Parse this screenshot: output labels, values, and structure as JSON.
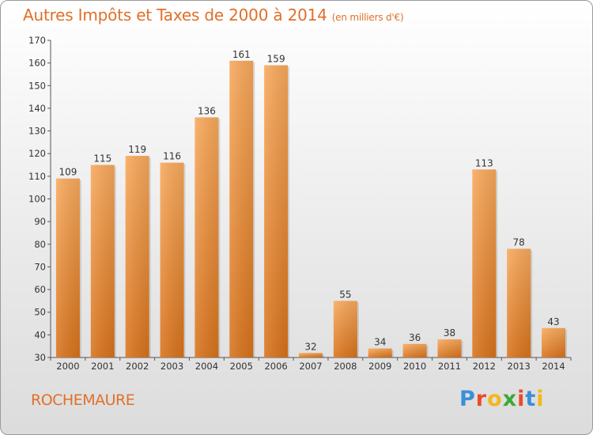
{
  "header": {
    "title": "Autres Impôts et Taxes de 2000 à 2014",
    "subtitle": "(en milliers d'€)"
  },
  "footer": {
    "commune": "ROCHEMAURE",
    "logo_letters": [
      "P",
      "r",
      "o",
      "x",
      "i",
      "t",
      "i"
    ]
  },
  "colors": {
    "title": "#e0702a",
    "bar_light": "#f7a85a",
    "bar_dark": "#d9731c",
    "logo": [
      "#3a8fd6",
      "#e84b2c",
      "#f2b71c",
      "#3aa935",
      "#e84b2c",
      "#3a8fd6",
      "#f2b71c"
    ]
  },
  "chart_data": {
    "type": "bar",
    "title": "Autres Impôts et Taxes de 2000 à 2014",
    "subtitle": "(en milliers d'€)",
    "categories": [
      "2000",
      "2001",
      "2002",
      "2003",
      "2004",
      "2005",
      "2006",
      "2007",
      "2008",
      "2009",
      "2010",
      "2011",
      "2012",
      "2013",
      "2014"
    ],
    "values": [
      109,
      115,
      119,
      116,
      136,
      161,
      159,
      32,
      55,
      34,
      36,
      38,
      113,
      78,
      43
    ],
    "ylim": [
      30,
      170
    ],
    "yticks": [
      30,
      40,
      50,
      60,
      70,
      80,
      90,
      100,
      110,
      120,
      130,
      140,
      150,
      160,
      170
    ],
    "xlabel": "",
    "ylabel": "",
    "grid": false
  }
}
